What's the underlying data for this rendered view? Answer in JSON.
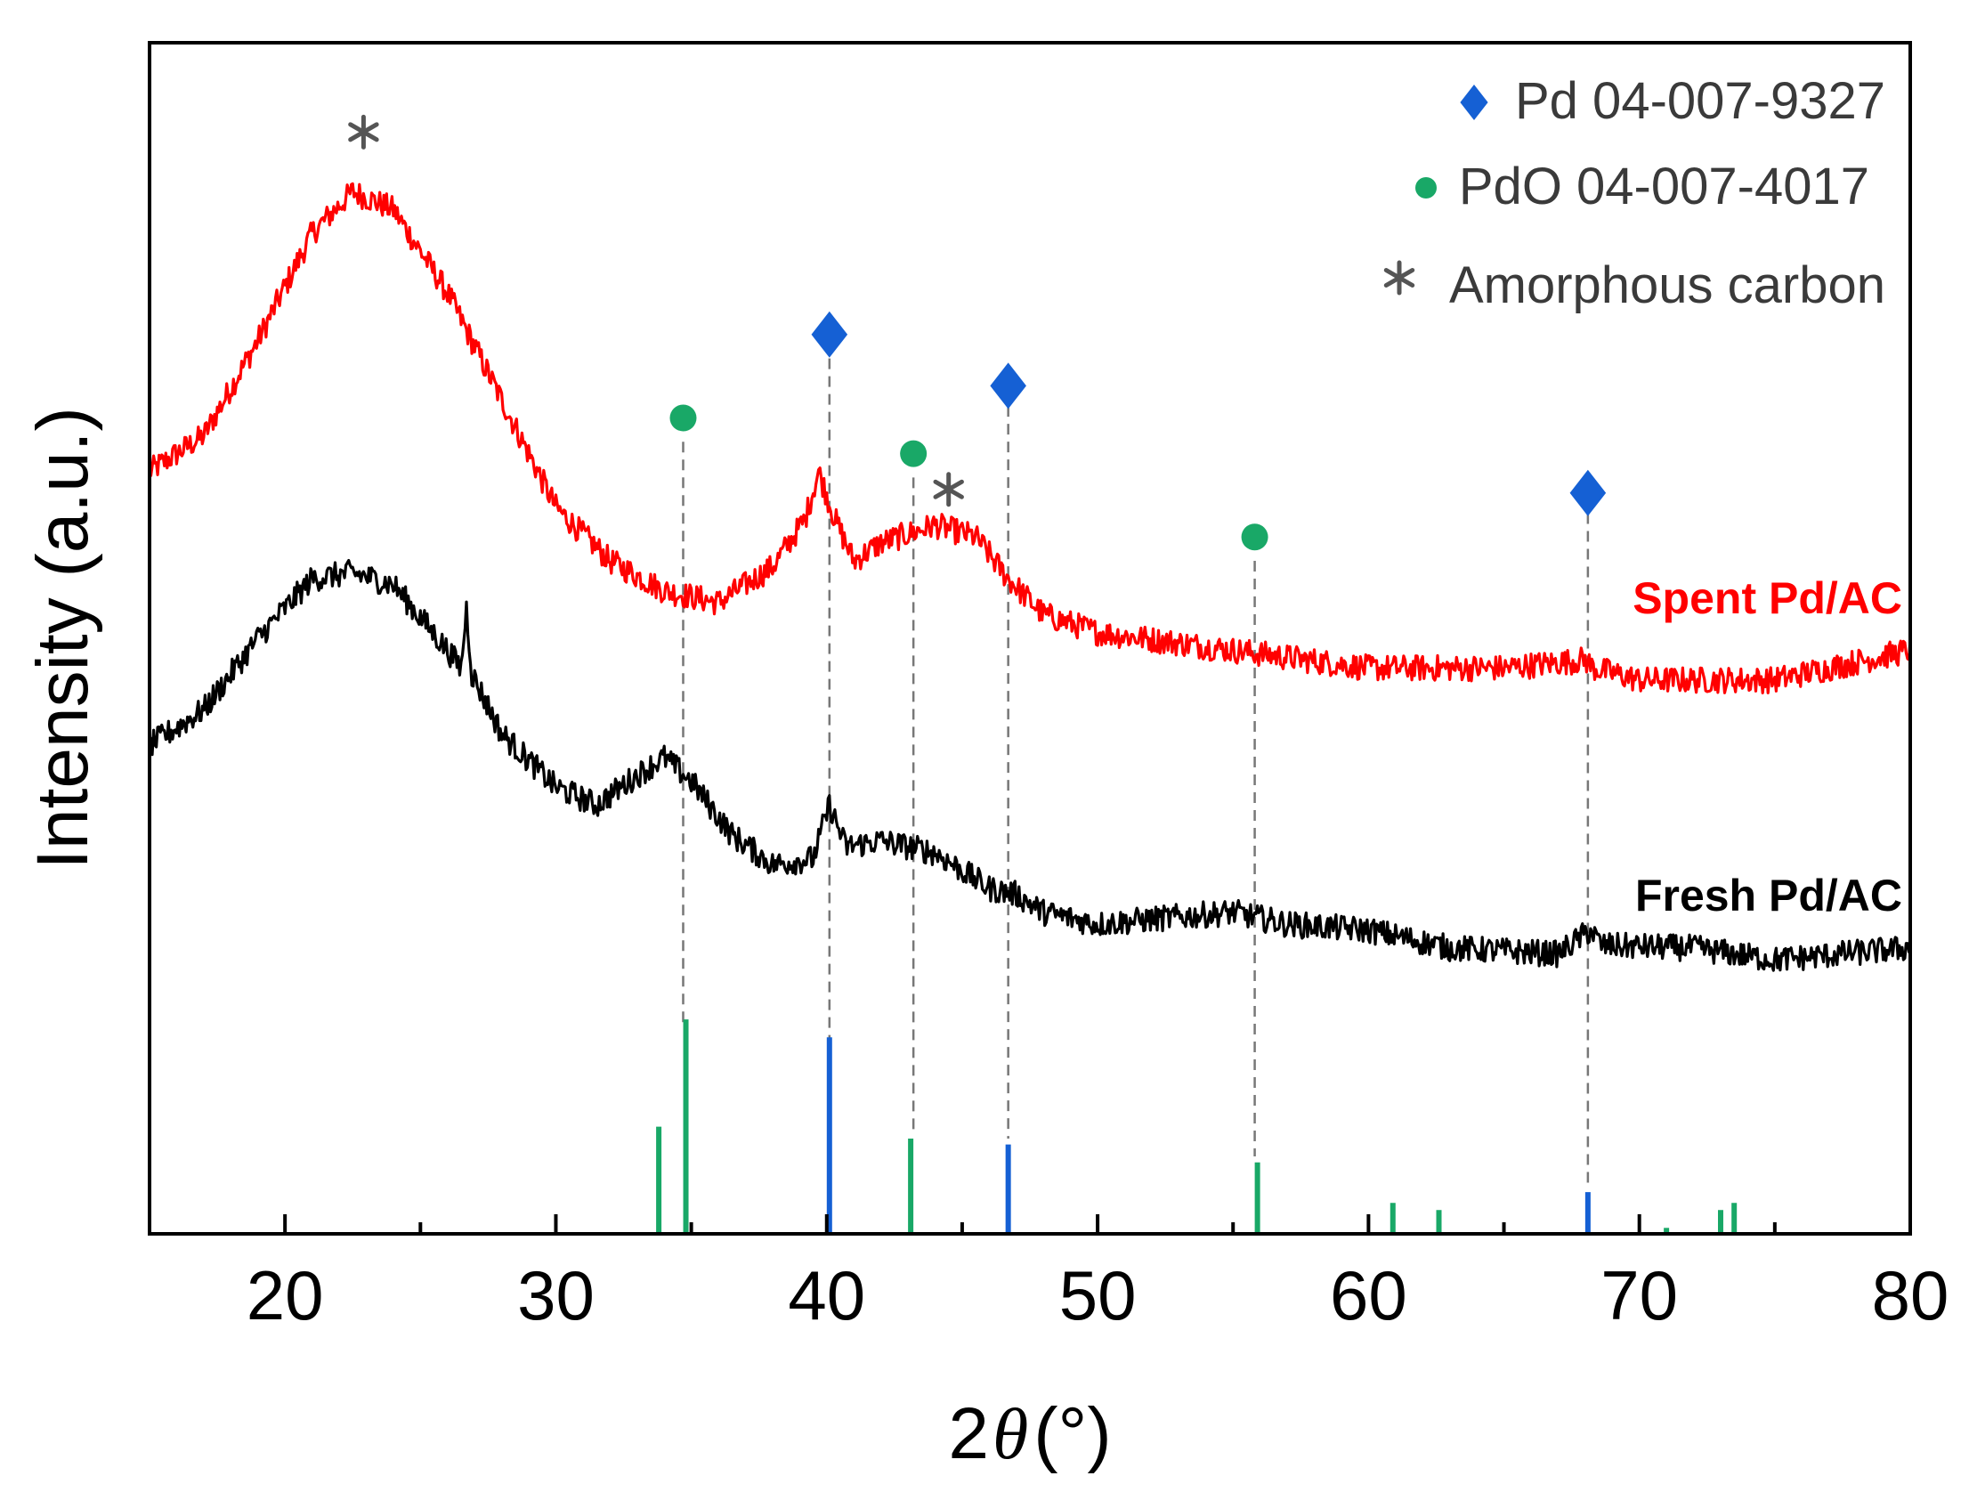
{
  "chart_data": {
    "type": "line",
    "title": "",
    "xlabel": {
      "prefix": "2",
      "symbol": "θ",
      "suffix": "(°)"
    },
    "ylabel": "Intensity (a.u.)",
    "xlim": [
      15,
      80
    ],
    "ylim": [
      0,
      100
    ],
    "x_ticks": [
      20,
      30,
      40,
      50,
      60,
      70,
      80
    ],
    "y_ticks": [],
    "grid": false,
    "legend_position": "top-right",
    "legend": [
      {
        "marker": "diamond",
        "color": "#1560d4",
        "label": "Pd 04-007-9327"
      },
      {
        "marker": "circle",
        "color": "#19a867",
        "label": "PdO 04-007-4017"
      },
      {
        "marker": "asterisk",
        "color": "#555555",
        "label": "Amorphous carbon"
      }
    ],
    "series": [
      {
        "name": "Spent Pd/AC",
        "color": "#ff0000",
        "label_text": "Spent Pd/AC",
        "noise": 1.1,
        "points": [
          [
            15,
            64
          ],
          [
            17,
            67
          ],
          [
            19,
            75
          ],
          [
            21,
            84
          ],
          [
            22.5,
            87.5
          ],
          [
            24,
            86
          ],
          [
            26,
            79
          ],
          [
            28,
            70
          ],
          [
            30,
            61
          ],
          [
            32,
            56.5
          ],
          [
            34,
            54
          ],
          [
            36,
            53
          ],
          [
            38,
            56
          ],
          [
            39.2,
            60
          ],
          [
            39.7,
            64
          ],
          [
            40.3,
            60
          ],
          [
            41,
            56.5
          ],
          [
            42,
            58
          ],
          [
            44,
            59.5
          ],
          [
            45.5,
            58.5
          ],
          [
            46.7,
            55
          ],
          [
            48,
            52
          ],
          [
            50,
            50.5
          ],
          [
            55,
            49
          ],
          [
            60,
            47.5
          ],
          [
            65,
            47.5
          ],
          [
            68,
            48.2
          ],
          [
            68.3,
            47.5
          ],
          [
            70,
            46.5
          ],
          [
            75,
            46.5
          ],
          [
            80,
            49
          ]
        ]
      },
      {
        "name": "Fresh Pd/AC",
        "color": "#000000",
        "label_text": "Fresh Pd/AC",
        "noise": 1.1,
        "points": [
          [
            15,
            41
          ],
          [
            17,
            44
          ],
          [
            19,
            50
          ],
          [
            21,
            55
          ],
          [
            22.5,
            55.5
          ],
          [
            24,
            54.5
          ],
          [
            26,
            49
          ],
          [
            26.5,
            47.5
          ],
          [
            26.7,
            52.5
          ],
          [
            26.9,
            47
          ],
          [
            28,
            42
          ],
          [
            30,
            37.5
          ],
          [
            31.5,
            36
          ],
          [
            33,
            38.5
          ],
          [
            34,
            40
          ],
          [
            35,
            38
          ],
          [
            36.5,
            33.5
          ],
          [
            38,
            31
          ],
          [
            39.5,
            31.5
          ],
          [
            40.1,
            36
          ],
          [
            40.7,
            32.5
          ],
          [
            42,
            33
          ],
          [
            44,
            32
          ],
          [
            46,
            29
          ],
          [
            47,
            28.5
          ],
          [
            48,
            27
          ],
          [
            50,
            26
          ],
          [
            55,
            27
          ],
          [
            57,
            26
          ],
          [
            60,
            25.5
          ],
          [
            63,
            24
          ],
          [
            67,
            23.5
          ],
          [
            68.2,
            25.5
          ],
          [
            68.6,
            24.2
          ],
          [
            72,
            24
          ],
          [
            75,
            23
          ],
          [
            80,
            24
          ]
        ]
      }
    ],
    "reference_peaks": [
      {
        "name": "Pd 04-007-9327",
        "color": "#1560d4",
        "peaks": [
          {
            "x": 40.1,
            "h": 16.5
          },
          {
            "x": 46.7,
            "h": 7.5
          },
          {
            "x": 68.1,
            "h": 3.5
          }
        ]
      },
      {
        "name": "PdO 04-007-4017",
        "color": "#19a867",
        "peaks": [
          {
            "x": 33.8,
            "h": 9
          },
          {
            "x": 34.8,
            "h": 18
          },
          {
            "x": 43.1,
            "h": 8
          },
          {
            "x": 55.9,
            "h": 6
          },
          {
            "x": 60.9,
            "h": 2.6
          },
          {
            "x": 62.6,
            "h": 2
          },
          {
            "x": 71.0,
            "h": 0.5
          },
          {
            "x": 73.0,
            "h": 2
          },
          {
            "x": 73.5,
            "h": 2.6
          }
        ]
      }
    ],
    "peak_markers": [
      {
        "type": "asterisk",
        "x": 22.9,
        "y": 92.5,
        "color": "#555555"
      },
      {
        "type": "asterisk",
        "x": 44.5,
        "y": 62.5,
        "color": "#555555"
      },
      {
        "type": "diamond",
        "x": 40.1,
        "y": 75.5,
        "color": "#1560d4"
      },
      {
        "type": "diamond",
        "x": 46.7,
        "y": 71.2,
        "color": "#1560d4"
      },
      {
        "type": "diamond",
        "x": 68.1,
        "y": 62.2,
        "color": "#1560d4"
      },
      {
        "type": "circle",
        "x": 34.7,
        "y": 68.5,
        "color": "#19a867"
      },
      {
        "type": "circle",
        "x": 43.2,
        "y": 65.5,
        "color": "#19a867"
      },
      {
        "type": "circle",
        "x": 55.8,
        "y": 58.5,
        "color": "#19a867"
      }
    ],
    "guide_lines": [
      {
        "x": 34.7,
        "y_top": 66.5,
        "y_bottom": 17.5
      },
      {
        "x": 40.1,
        "y_top": 73.5,
        "y_bottom": 16.0
      },
      {
        "x": 43.2,
        "y_top": 63.5,
        "y_bottom": 8.5
      },
      {
        "x": 46.7,
        "y_top": 69.5,
        "y_bottom": 8.0
      },
      {
        "x": 55.8,
        "y_top": 56.5,
        "y_bottom": 6.5
      },
      {
        "x": 68.1,
        "y_top": 60.5,
        "y_bottom": 4.0
      }
    ]
  }
}
